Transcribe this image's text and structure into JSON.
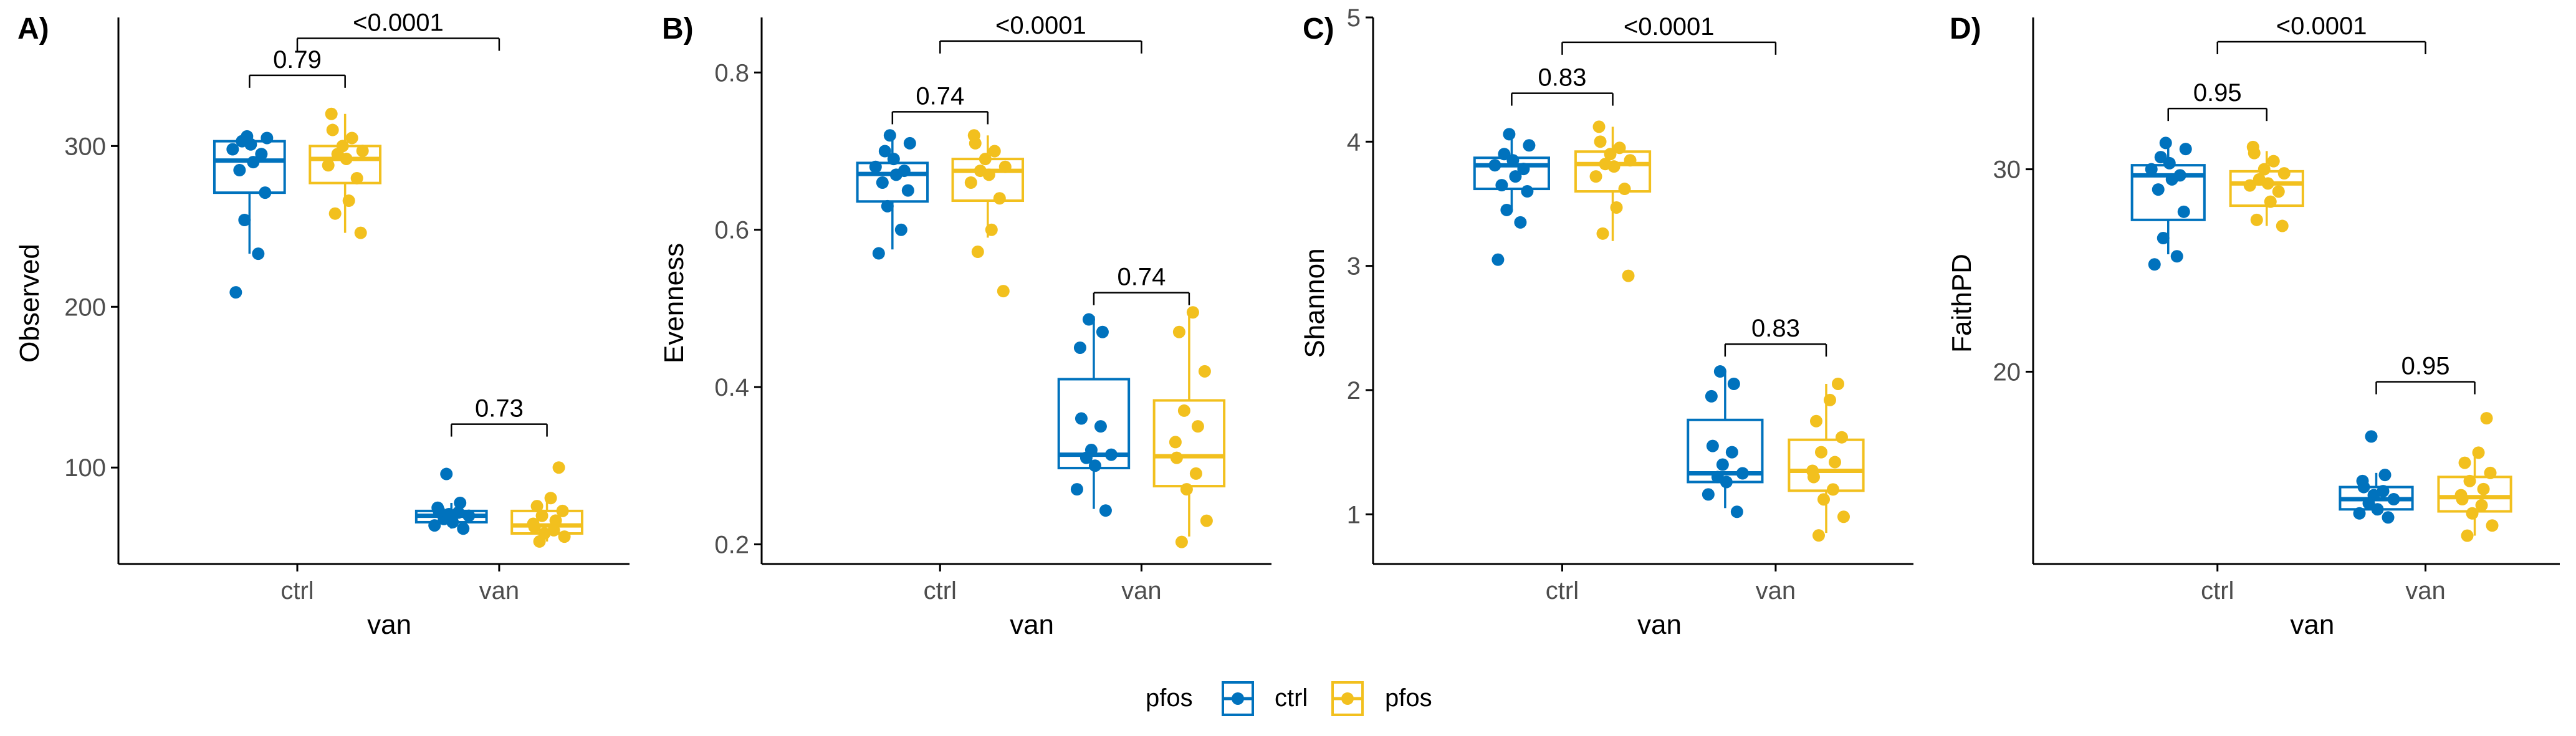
{
  "colors": {
    "ctrl": "#0072BD",
    "pfos": "#F2C01E",
    "axis": "#000000",
    "tick_text": "#4d4d4d"
  },
  "legend": {
    "title": "pfos",
    "items": [
      "ctrl",
      "pfos"
    ]
  },
  "chart_data": [
    {
      "type": "box",
      "panel_tag": "A)",
      "ylabel": "Observed",
      "xlabel": "van",
      "categories": [
        "ctrl",
        "van"
      ],
      "ylim": [
        40,
        380
      ],
      "yticks": [
        100,
        200,
        300
      ],
      "groups": [
        {
          "x": "ctrl",
          "pfos": "ctrl",
          "box": {
            "min": 233,
            "q1": 271,
            "median": 291,
            "q3": 303,
            "max": 306
          },
          "points": [
            209,
            233,
            254,
            271,
            285,
            290,
            295,
            298,
            301,
            303,
            305,
            306
          ]
        },
        {
          "x": "ctrl",
          "pfos": "pfos",
          "box": {
            "min": 246,
            "q1": 277,
            "median": 292,
            "q3": 300,
            "max": 320
          },
          "points": [
            246,
            258,
            266,
            280,
            288,
            292,
            295,
            297,
            300,
            305,
            310,
            320
          ]
        },
        {
          "x": "van",
          "pfos": "ctrl",
          "box": {
            "min": 62,
            "q1": 66,
            "median": 70,
            "q3": 73,
            "max": 78
          },
          "points": [
            62,
            64,
            66,
            68,
            70,
            71,
            72,
            73,
            75,
            78,
            96
          ]
        },
        {
          "x": "van",
          "pfos": "pfos",
          "box": {
            "min": 54,
            "q1": 59,
            "median": 64,
            "q3": 73,
            "max": 81
          },
          "points": [
            54,
            57,
            59,
            61,
            63,
            65,
            67,
            70,
            73,
            76,
            81,
            100
          ]
        }
      ],
      "comparisons": [
        {
          "between": [
            "ctrl:ctrl",
            "ctrl:pfos"
          ],
          "label": "0.79",
          "y": 344
        },
        {
          "between": [
            "van:ctrl",
            "van:pfos"
          ],
          "label": "0.73",
          "y": 127
        },
        {
          "between": [
            "ctrl",
            "van"
          ],
          "label": "<0.0001",
          "y": 367
        }
      ]
    },
    {
      "type": "box",
      "panel_tag": "B)",
      "ylabel": "Evenness",
      "xlabel": "van",
      "categories": [
        "ctrl",
        "van"
      ],
      "ylim": [
        0.175,
        0.87
      ],
      "yticks": [
        0.2,
        0.4,
        0.6,
        0.8
      ],
      "tick_labels": [
        "0.2",
        "0.4",
        "0.6",
        "0.8"
      ],
      "groups": [
        {
          "x": "ctrl",
          "pfos": "ctrl",
          "box": {
            "min": 0.575,
            "q1": 0.636,
            "median": 0.671,
            "q3": 0.685,
            "max": 0.72
          },
          "points": [
            0.57,
            0.6,
            0.63,
            0.65,
            0.66,
            0.67,
            0.675,
            0.68,
            0.69,
            0.7,
            0.71,
            0.72
          ]
        },
        {
          "x": "ctrl",
          "pfos": "pfos",
          "box": {
            "min": 0.59,
            "q1": 0.637,
            "median": 0.675,
            "q3": 0.69,
            "max": 0.72
          },
          "points": [
            0.522,
            0.572,
            0.6,
            0.64,
            0.66,
            0.67,
            0.675,
            0.68,
            0.69,
            0.7,
            0.71,
            0.72
          ]
        },
        {
          "x": "van",
          "pfos": "ctrl",
          "box": {
            "min": 0.245,
            "q1": 0.297,
            "median": 0.314,
            "q3": 0.41,
            "max": 0.49
          },
          "points": [
            0.243,
            0.27,
            0.3,
            0.31,
            0.314,
            0.32,
            0.35,
            0.36,
            0.45,
            0.47,
            0.486
          ]
        },
        {
          "x": "van",
          "pfos": "pfos",
          "box": {
            "min": 0.21,
            "q1": 0.274,
            "median": 0.312,
            "q3": 0.383,
            "max": 0.495
          },
          "points": [
            0.203,
            0.23,
            0.27,
            0.29,
            0.31,
            0.33,
            0.35,
            0.37,
            0.42,
            0.47,
            0.495
          ]
        }
      ],
      "comparisons": [
        {
          "between": [
            "ctrl:ctrl",
            "ctrl:pfos"
          ],
          "label": "0.74",
          "y": 0.75
        },
        {
          "between": [
            "van:ctrl",
            "van:pfos"
          ],
          "label": "0.74",
          "y": 0.52
        },
        {
          "between": [
            "ctrl",
            "van"
          ],
          "label": "<0.0001",
          "y": 0.84
        }
      ]
    },
    {
      "type": "box",
      "panel_tag": "C)",
      "ylabel": "Shannon",
      "xlabel": "van",
      "categories": [
        "ctrl",
        "van"
      ],
      "ylim": [
        0.6,
        5.0
      ],
      "yticks": [
        1,
        2,
        3,
        4,
        5
      ],
      "groups": [
        {
          "x": "ctrl",
          "pfos": "ctrl",
          "box": {
            "min": 3.45,
            "q1": 3.62,
            "median": 3.81,
            "q3": 3.87,
            "max": 4.06
          },
          "points": [
            3.05,
            3.35,
            3.45,
            3.6,
            3.65,
            3.72,
            3.78,
            3.81,
            3.85,
            3.9,
            3.97,
            4.06
          ]
        },
        {
          "x": "ctrl",
          "pfos": "pfos",
          "box": {
            "min": 3.2,
            "q1": 3.6,
            "median": 3.82,
            "q3": 3.92,
            "max": 4.12
          },
          "points": [
            2.92,
            3.26,
            3.47,
            3.62,
            3.72,
            3.8,
            3.82,
            3.85,
            3.9,
            3.95,
            4.0,
            4.12
          ]
        },
        {
          "x": "van",
          "pfos": "ctrl",
          "box": {
            "min": 1.05,
            "q1": 1.26,
            "median": 1.33,
            "q3": 1.76,
            "max": 2.15
          },
          "points": [
            1.02,
            1.16,
            1.26,
            1.3,
            1.33,
            1.4,
            1.5,
            1.55,
            1.95,
            2.05,
            2.15
          ]
        },
        {
          "x": "van",
          "pfos": "pfos",
          "box": {
            "min": 0.85,
            "q1": 1.19,
            "median": 1.35,
            "q3": 1.6,
            "max": 2.05
          },
          "points": [
            0.83,
            0.98,
            1.12,
            1.2,
            1.3,
            1.35,
            1.42,
            1.5,
            1.62,
            1.75,
            1.92,
            2.05
          ]
        }
      ],
      "comparisons": [
        {
          "between": [
            "ctrl:ctrl",
            "ctrl:pfos"
          ],
          "label": "0.83",
          "y": 4.39
        },
        {
          "between": [
            "van:ctrl",
            "van:pfos"
          ],
          "label": "0.83",
          "y": 2.37
        },
        {
          "between": [
            "ctrl",
            "van"
          ],
          "label": "<0.0001",
          "y": 4.8
        }
      ]
    },
    {
      "type": "box",
      "panel_tag": "D)",
      "ylabel": "FaithPD",
      "xlabel": "van",
      "categories": [
        "ctrl",
        "van"
      ],
      "ylim": [
        10.5,
        37.5
      ],
      "yticks": [
        20,
        30
      ],
      "groups": [
        {
          "x": "ctrl",
          "pfos": "ctrl",
          "box": {
            "min": 25.8,
            "q1": 27.5,
            "median": 29.7,
            "q3": 30.2,
            "max": 31.1
          },
          "points": [
            25.3,
            25.7,
            26.6,
            27.9,
            29.0,
            29.5,
            29.7,
            30.0,
            30.3,
            30.6,
            31.0,
            31.3
          ]
        },
        {
          "x": "ctrl",
          "pfos": "pfos",
          "box": {
            "min": 27.2,
            "q1": 28.2,
            "median": 29.3,
            "q3": 29.9,
            "max": 30.9
          },
          "points": [
            27.2,
            27.5,
            28.4,
            28.9,
            29.2,
            29.3,
            29.5,
            29.8,
            30.0,
            30.4,
            30.8,
            31.1
          ]
        },
        {
          "x": "van",
          "pfos": "ctrl",
          "box": {
            "min": 12.9,
            "q1": 13.2,
            "median": 13.7,
            "q3": 14.3,
            "max": 15.0
          },
          "points": [
            12.8,
            13.0,
            13.2,
            13.5,
            13.7,
            13.9,
            14.1,
            14.3,
            14.6,
            14.9,
            16.8
          ]
        },
        {
          "x": "van",
          "pfos": "pfos",
          "box": {
            "min": 11.9,
            "q1": 13.1,
            "median": 13.8,
            "q3": 14.8,
            "max": 16.0
          },
          "points": [
            11.9,
            12.4,
            13.0,
            13.4,
            13.7,
            13.9,
            14.2,
            14.6,
            15.0,
            15.5,
            16.0,
            17.7
          ]
        }
      ],
      "comparisons": [
        {
          "between": [
            "ctrl:ctrl",
            "ctrl:pfos"
          ],
          "label": "0.95",
          "y": 33.0
        },
        {
          "between": [
            "van:ctrl",
            "van:pfos"
          ],
          "label": "0.95",
          "y": 19.5
        },
        {
          "between": [
            "ctrl",
            "van"
          ],
          "label": "<0.0001",
          "y": 36.3
        }
      ]
    }
  ]
}
